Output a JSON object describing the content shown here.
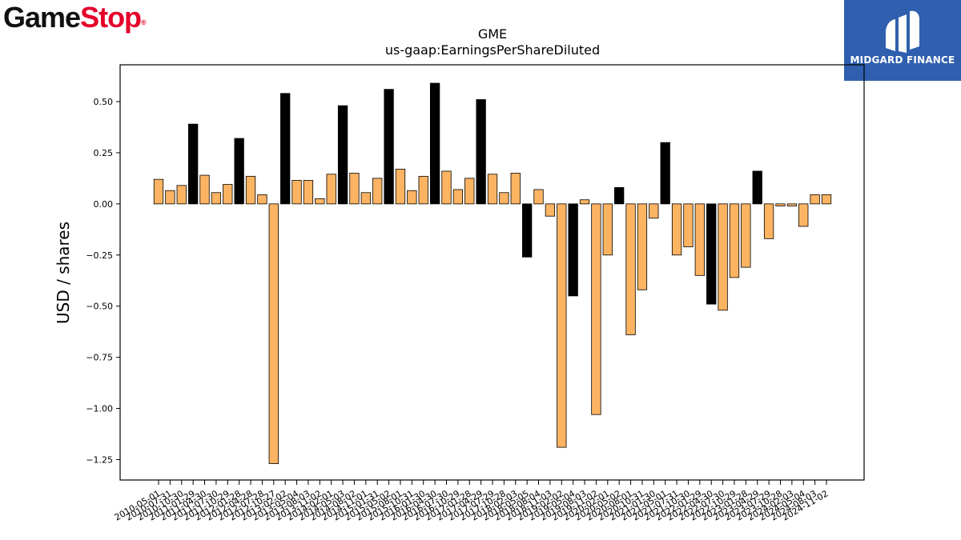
{
  "logos": {
    "left_part1": "Game",
    "left_part2": "Stop",
    "left_mark": "®",
    "right_text": "MIDGARD FINANCE"
  },
  "colors": {
    "positive_highlight": "#000000",
    "default_bar": "#fdb462",
    "bar_edge": "#000000",
    "brand_blue": "#2f5fae"
  },
  "chart_data": {
    "type": "bar",
    "title": "GME",
    "subtitle": "us-gaap:EarningsPerShareDiluted",
    "xlabel": "",
    "ylabel": "USD / shares",
    "ylim": [
      -1.35,
      0.68
    ],
    "yticks": [
      0.5,
      0.25,
      0.0,
      -0.25,
      -0.5,
      -0.75,
      -1.0,
      -1.25
    ],
    "ytick_labels": [
      "0.50",
      "0.25",
      "0.00",
      "−0.25",
      "−0.50",
      "−0.75",
      "−1.00",
      "−1.25"
    ],
    "grid": false,
    "legend": "none",
    "categories": [
      "2010-05-01",
      "2010-07-31",
      "2010-10-30",
      "2011-01-29",
      "2011-04-30",
      "2011-07-30",
      "2011-10-29",
      "2012-01-28",
      "2012-04-28",
      "2012-07-28",
      "2012-10-27",
      "2013-02-02",
      "2013-05-04",
      "2013-08-03",
      "2013-11-02",
      "2014-02-01",
      "2014-05-03",
      "2014-08-02",
      "2014-11-01",
      "2015-01-31",
      "2015-05-02",
      "2015-08-01",
      "2015-10-31",
      "2016-01-30",
      "2016-04-30",
      "2016-07-30",
      "2016-10-29",
      "2017-01-28",
      "2017-04-29",
      "2017-07-29",
      "2017-10-28",
      "2018-02-03",
      "2018-05-05",
      "2018-08-04",
      "2018-11-03",
      "2019-02-02",
      "2019-05-04",
      "2019-08-03",
      "2019-11-02",
      "2020-02-01",
      "2020-05-02",
      "2020-08-01",
      "2020-10-31",
      "2021-01-30",
      "2021-05-01",
      "2021-07-31",
      "2021-10-30",
      "2022-01-29",
      "2022-04-30",
      "2022-07-30",
      "2022-10-29",
      "2023-01-28",
      "2023-04-29",
      "2023-07-29",
      "2023-10-28",
      "2024-02-03",
      "2024-05-04",
      "2024-08-03",
      "2024-11-02"
    ],
    "values": [
      0.12,
      0.065,
      0.09,
      0.39,
      0.14,
      0.055,
      0.095,
      0.32,
      0.135,
      0.045,
      -1.27,
      0.54,
      0.115,
      0.115,
      0.025,
      0.145,
      0.48,
      0.15,
      0.055,
      0.125,
      0.56,
      0.17,
      0.065,
      0.135,
      0.59,
      0.16,
      0.07,
      0.125,
      0.51,
      0.145,
      0.055,
      0.15,
      -0.26,
      0.07,
      -0.06,
      -1.19,
      -0.45,
      0.02,
      -1.03,
      -0.25,
      0.08,
      -0.64,
      -0.42,
      -0.07,
      0.3,
      -0.25,
      -0.21,
      -0.35,
      -0.49,
      -0.52,
      -0.36,
      -0.31,
      0.16,
      -0.17,
      -0.01,
      -0.01,
      -0.11,
      0.045,
      0.045
    ],
    "highlight_indices": [
      3,
      7,
      11,
      16,
      20,
      24,
      28,
      32,
      36,
      40,
      44,
      48,
      52
    ]
  }
}
